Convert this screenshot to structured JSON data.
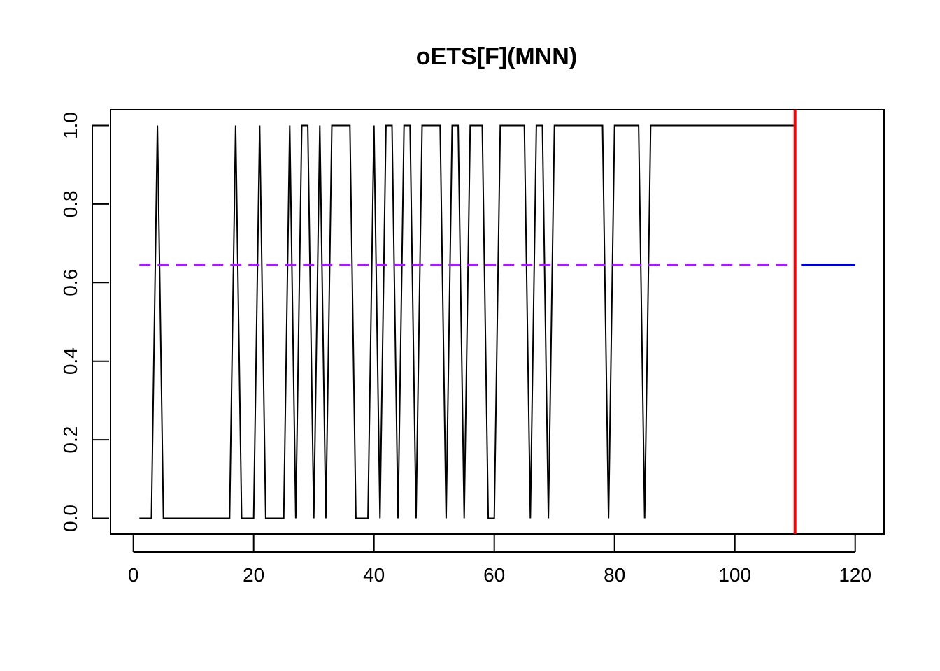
{
  "chart_data": {
    "type": "line",
    "title": "oETS[F](MNN)",
    "xlabel": "",
    "ylabel": "",
    "xlim": [
      -3.8,
      124.8
    ],
    "ylim": [
      -0.04,
      1.04
    ],
    "x_ticks": [
      0,
      20,
      40,
      60,
      80,
      100,
      120
    ],
    "y_ticks": [
      0.0,
      0.2,
      0.4,
      0.6,
      0.8,
      1.0
    ],
    "x_tick_labels": [
      "0",
      "20",
      "40",
      "60",
      "80",
      "100",
      "120"
    ],
    "y_tick_labels": [
      "0.0",
      "0.2",
      "0.4",
      "0.6",
      "0.8",
      "1.0"
    ],
    "grid": false,
    "legend": "none",
    "series": [
      {
        "role": "actuals",
        "color": "#000000",
        "style": "solid",
        "x": [
          1,
          2,
          3,
          4,
          5,
          6,
          7,
          8,
          9,
          10,
          11,
          12,
          13,
          14,
          15,
          16,
          17,
          18,
          19,
          20,
          21,
          22,
          23,
          24,
          25,
          26,
          27,
          28,
          29,
          30,
          31,
          32,
          33,
          34,
          35,
          36,
          37,
          38,
          39,
          40,
          41,
          42,
          43,
          44,
          45,
          46,
          47,
          48,
          49,
          50,
          51,
          52,
          53,
          54,
          55,
          56,
          57,
          58,
          59,
          60,
          61,
          62,
          63,
          64,
          65,
          66,
          67,
          68,
          69,
          70,
          71,
          72,
          73,
          74,
          75,
          76,
          77,
          78,
          79,
          80,
          81,
          82,
          83,
          84,
          85,
          86,
          87,
          88,
          89,
          90,
          91,
          92,
          93,
          94,
          95,
          96,
          97,
          98,
          99,
          100,
          101,
          102,
          103,
          104,
          105,
          106,
          107,
          108,
          109,
          110
        ],
        "values": [
          0,
          0,
          0,
          1,
          0,
          0,
          0,
          0,
          0,
          0,
          0,
          0,
          0,
          0,
          0,
          0,
          1,
          0,
          0,
          0,
          1,
          0,
          0,
          0,
          0,
          1,
          0,
          1,
          1,
          0,
          1,
          0,
          1,
          1,
          1,
          1,
          0,
          0,
          0,
          1,
          0,
          1,
          1,
          0,
          1,
          1,
          0,
          1,
          1,
          1,
          1,
          0,
          1,
          1,
          0,
          1,
          1,
          1,
          0,
          0,
          1,
          1,
          1,
          1,
          1,
          0,
          1,
          1,
          0,
          1,
          1,
          1,
          1,
          1,
          1,
          1,
          1,
          1,
          0,
          1,
          1,
          1,
          1,
          1,
          0,
          1,
          1,
          1,
          1,
          1,
          1,
          1,
          1,
          1,
          1,
          1,
          1,
          1,
          1,
          1,
          1,
          1,
          1,
          1,
          1,
          1,
          1,
          1,
          1,
          1
        ]
      },
      {
        "role": "fitted",
        "color": "#a020f0",
        "style": "dashed",
        "x": [
          1,
          110
        ],
        "values": [
          0.645,
          0.645
        ]
      },
      {
        "role": "forecast",
        "color": "#0000cd",
        "style": "solid",
        "x": [
          111,
          120
        ],
        "values": [
          0.645,
          0.645
        ]
      }
    ],
    "vline": {
      "x": 110,
      "color": "#ff0000"
    }
  }
}
